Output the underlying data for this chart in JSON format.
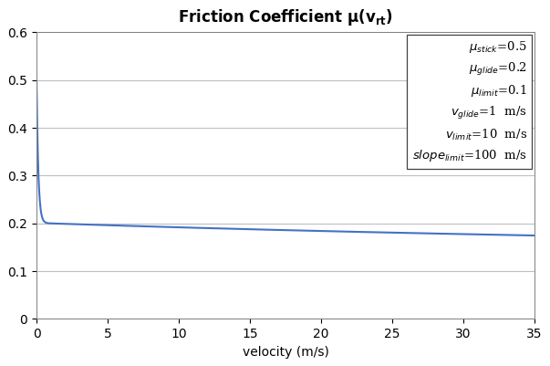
{
  "title": "Friction Coefficient μ(v_{rt})",
  "xlabel": "velocity (m/s)",
  "mu_stick": 0.5,
  "mu_glide": 0.2,
  "mu_limit": 0.1,
  "v_glide": 1.0,
  "v_limit": 10.0,
  "slope_limit": 100.0,
  "xlim": [
    0,
    35
  ],
  "ylim": [
    0,
    0.6
  ],
  "xticks": [
    0,
    5,
    10,
    15,
    20,
    25,
    30,
    35
  ],
  "yticks": [
    0,
    0.1,
    0.2,
    0.3,
    0.4,
    0.5,
    0.6
  ],
  "line_color": "#4472C4",
  "line_width": 1.5,
  "grid_color": "#BFBFBF",
  "background_color": "#FFFFFF",
  "title_fontsize": 12,
  "axis_fontsize": 10,
  "tick_fontsize": 10,
  "legend_fontsize": 9.5,
  "figsize": [
    6.03,
    4.01
  ],
  "dpi": 100
}
